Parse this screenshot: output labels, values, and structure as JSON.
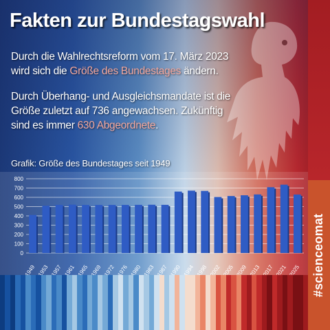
{
  "title": "Fakten zur Bundestagswahl",
  "para1": {
    "line1": "Durch die Wahlrechtsreform vom 17. März 2023",
    "line2_pre": "wird sich die ",
    "line2_accent": "Größe des Bundestages",
    "line2_post": " ändern."
  },
  "para2": {
    "line1": "Durch Überhang- und Ausgleichsmandate ist die",
    "line2": "Größe zuletzt auf 736 angewachsen. Zukünftig",
    "line3_pre": "sind es  immer ",
    "line3_accent": "630 Abgeordnete",
    "line3_post": "."
  },
  "caption": "Grafik: Größe des Bundestages seit 1949",
  "side_tag": "#scienceomat",
  "colors": {
    "bar": "#2f5cc4",
    "accent": "#f4a89e",
    "tag": "#c9532c"
  },
  "chart_data": {
    "type": "bar",
    "categories": [
      "1949",
      "1953",
      "1957",
      "1961",
      "1965",
      "1969",
      "1972",
      "1976",
      "1980",
      "1983",
      "1987",
      "1990",
      "1994",
      "1998",
      "2002",
      "2005",
      "2009",
      "2013",
      "2017",
      "2021",
      "2025"
    ],
    "values": [
      410,
      509,
      519,
      521,
      518,
      518,
      518,
      518,
      519,
      520,
      519,
      662,
      672,
      669,
      603,
      614,
      622,
      631,
      709,
      736,
      630
    ],
    "ylim": [
      0,
      800
    ],
    "yticks": [
      "0",
      "100",
      "200",
      "300",
      "400",
      "500",
      "600",
      "700",
      "800"
    ],
    "grid": true
  }
}
